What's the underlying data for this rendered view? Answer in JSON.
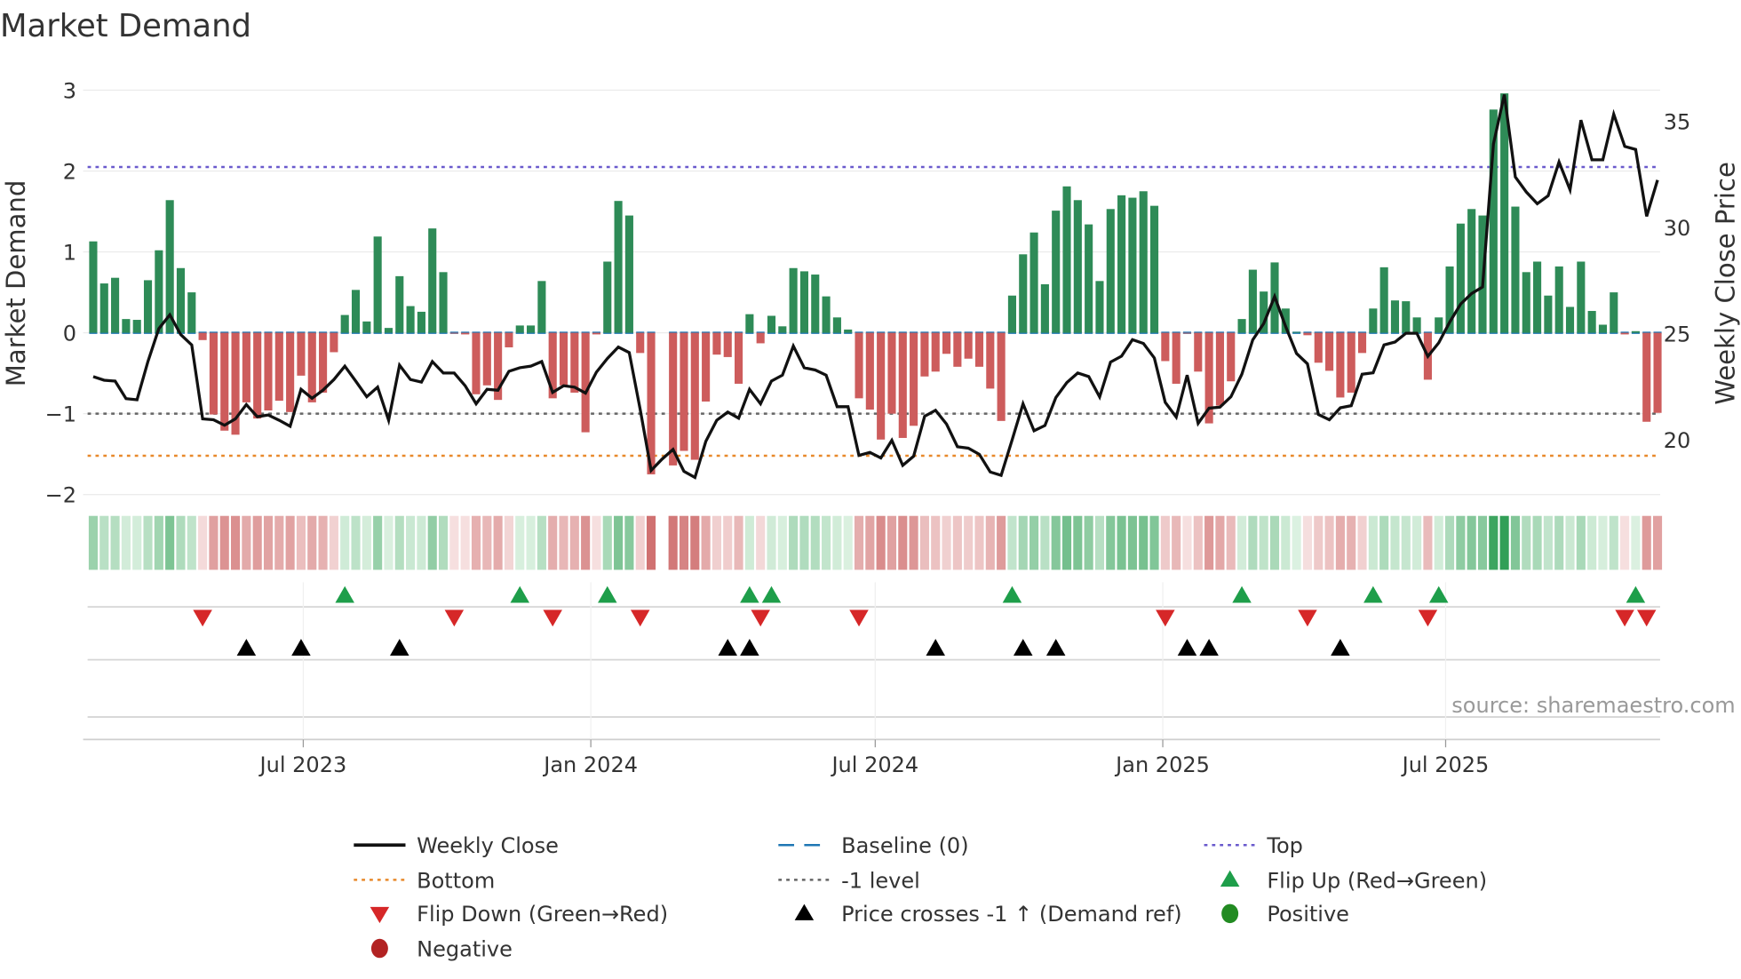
{
  "chart_data": {
    "type": "bar",
    "title": "Market Demand",
    "ylabel": "Market Demand",
    "y2label": "Weekly Close Price",
    "ylim": [
      -2.2,
      3.2
    ],
    "y2lim": [
      17.6,
      37.0
    ],
    "yticks": [
      3,
      2,
      1,
      0,
      -1,
      -2
    ],
    "ytick_labels": [
      "3",
      "2",
      "1",
      "0",
      "−1",
      "−2"
    ],
    "y2ticks": [
      35,
      30,
      25,
      20
    ],
    "y2tick_labels": [
      "35",
      "30",
      "25",
      "20"
    ],
    "xticks": [
      "2023-07-01",
      "2024-01-01",
      "2024-07-01",
      "2025-01-01",
      "2025-07-01"
    ],
    "xtick_labels": [
      "Jul 2023",
      "Jan 2024",
      "Jul 2024",
      "Jan 2025",
      "Jul 2025"
    ],
    "x_start": "2023-02-13",
    "x_frequency": "weekly",
    "grid": true,
    "legend_position": "bottom",
    "levels": {
      "top": 2.05,
      "baseline": 0,
      "minus_one": -1,
      "bottom": -1.52
    },
    "series": [
      {
        "name": "Market Demand",
        "type": "bar",
        "axis": "left",
        "values": [
          1.13,
          0.61,
          0.68,
          0.17,
          0.16,
          0.65,
          1.02,
          1.64,
          0.8,
          0.5,
          -0.09,
          -1.01,
          -1.21,
          -1.26,
          -0.86,
          -1.06,
          -0.96,
          -0.84,
          -0.98,
          -0.53,
          -0.86,
          -0.74,
          -0.24,
          0.22,
          0.53,
          0.14,
          1.19,
          0.06,
          0.7,
          0.33,
          0.26,
          1.29,
          0.75,
          -0.01,
          -0.02,
          -0.76,
          -0.65,
          -0.83,
          -0.18,
          0.09,
          0.09,
          0.64,
          -0.81,
          -0.65,
          -0.74,
          -1.23,
          -0.02,
          0.88,
          1.63,
          1.45,
          -0.25,
          -1.75,
          null,
          -1.64,
          -1.46,
          -1.57,
          -0.85,
          -0.27,
          -0.3,
          -0.63,
          0.23,
          -0.13,
          0.21,
          0.08,
          0.8,
          0.76,
          0.72,
          0.45,
          0.19,
          0.04,
          -0.81,
          -0.95,
          -1.32,
          -1.0,
          -1.3,
          -1.15,
          -0.54,
          -0.48,
          -0.26,
          -0.42,
          -0.32,
          -0.42,
          -0.69,
          -1.09,
          0.46,
          0.97,
          1.24,
          0.6,
          1.51,
          1.81,
          1.64,
          1.34,
          0.64,
          1.53,
          1.7,
          1.67,
          1.75,
          1.57,
          -0.35,
          -0.63,
          -0.01,
          -0.48,
          -1.12,
          -0.9,
          -0.6,
          0.17,
          0.78,
          0.51,
          0.87,
          0.3,
          0.01,
          -0.03,
          -0.37,
          -0.47,
          -0.8,
          -0.74,
          -0.25,
          0.3,
          0.81,
          0.4,
          0.39,
          0.19,
          -0.58,
          0.19,
          0.82,
          1.35,
          1.53,
          1.45,
          2.76,
          2.96,
          1.56,
          0.75,
          0.88,
          0.46,
          0.82,
          0.32,
          0.88,
          0.27,
          0.1,
          0.5,
          -0.02,
          0.02,
          -1.1,
          -0.99
        ]
      },
      {
        "name": "Weekly Close",
        "type": "line",
        "axis": "right",
        "values": [
          22.99,
          22.82,
          22.78,
          21.95,
          21.9,
          23.7,
          25.25,
          25.9,
          24.97,
          24.48,
          21.0,
          20.96,
          20.7,
          21.0,
          21.67,
          21.1,
          21.18,
          20.93,
          20.65,
          22.39,
          21.97,
          22.35,
          22.85,
          23.48,
          22.78,
          22.04,
          22.49,
          20.93,
          23.53,
          22.85,
          22.73,
          23.7,
          23.16,
          23.16,
          22.56,
          21.71,
          22.39,
          22.35,
          23.24,
          23.41,
          23.48,
          23.7,
          22.25,
          22.56,
          22.49,
          22.21,
          23.2,
          23.84,
          24.38,
          24.12,
          21.43,
          18.57,
          19.1,
          19.56,
          18.53,
          18.24,
          19.94,
          20.93,
          21.32,
          21.03,
          22.39,
          21.71,
          22.78,
          23.06,
          24.43,
          23.41,
          23.3,
          23.06,
          21.57,
          21.57,
          19.28,
          19.42,
          19.16,
          19.99,
          18.81,
          19.24,
          21.12,
          21.4,
          20.75,
          19.69,
          19.62,
          19.33,
          18.5,
          18.34,
          20.01,
          21.71,
          20.44,
          20.69,
          22.0,
          22.71,
          23.16,
          22.99,
          22.03,
          23.67,
          23.95,
          24.73,
          24.55,
          23.87,
          21.78,
          21.08,
          23.06,
          20.79,
          21.5,
          21.55,
          22.04,
          23.1,
          24.72,
          25.49,
          26.76,
          25.35,
          24.08,
          23.59,
          21.2,
          20.96,
          21.52,
          21.62,
          23.1,
          23.17,
          24.48,
          24.62,
          25.03,
          25.03,
          23.94,
          24.58,
          25.56,
          26.41,
          26.9,
          27.21,
          33.94,
          36.27,
          32.39,
          31.69,
          31.13,
          31.51,
          33.1,
          31.79,
          35.07,
          33.2,
          33.2,
          35.35,
          33.83,
          33.69,
          30.54,
          32.25
        ]
      }
    ],
    "markers": {
      "flip_up_week_index": [
        23,
        39,
        47,
        60,
        62,
        84,
        105,
        117,
        123,
        141
      ],
      "flip_down_week_index": [
        10,
        33,
        42,
        50,
        61,
        70,
        98,
        111,
        122,
        140,
        142
      ],
      "price_cross_week_index": [
        14,
        19,
        28,
        58,
        60,
        77,
        85,
        88,
        100,
        102,
        114
      ]
    },
    "legend": [
      {
        "label": "Weekly Close",
        "kind": "line-solid",
        "color": "#111111"
      },
      {
        "label": "Baseline (0)",
        "kind": "line-dash",
        "color": "#1f77b4"
      },
      {
        "label": "Top",
        "kind": "line-dot",
        "color": "#6a5acd"
      },
      {
        "label": "Bottom",
        "kind": "line-dot",
        "color": "#e8892b"
      },
      {
        "label": "-1 level",
        "kind": "line-dot",
        "color": "#666666"
      },
      {
        "label": "Flip Up (Red→Green)",
        "kind": "triangle-up",
        "color": "#1e9e4a"
      },
      {
        "label": "Flip Down (Green→Red)",
        "kind": "triangle-down",
        "color": "#d62728"
      },
      {
        "label": "Price crosses -1 ↑ (Demand ref)",
        "kind": "triangle-up",
        "color": "#000000"
      },
      {
        "label": "Positive",
        "kind": "circle",
        "color": "#228b22"
      },
      {
        "label": "Negative",
        "kind": "circle",
        "color": "#b22222"
      }
    ],
    "colors": {
      "positive_bar": "#2e8b57",
      "negative_bar": "#cd5c5c"
    },
    "source": "source: sharemaestro.com"
  }
}
